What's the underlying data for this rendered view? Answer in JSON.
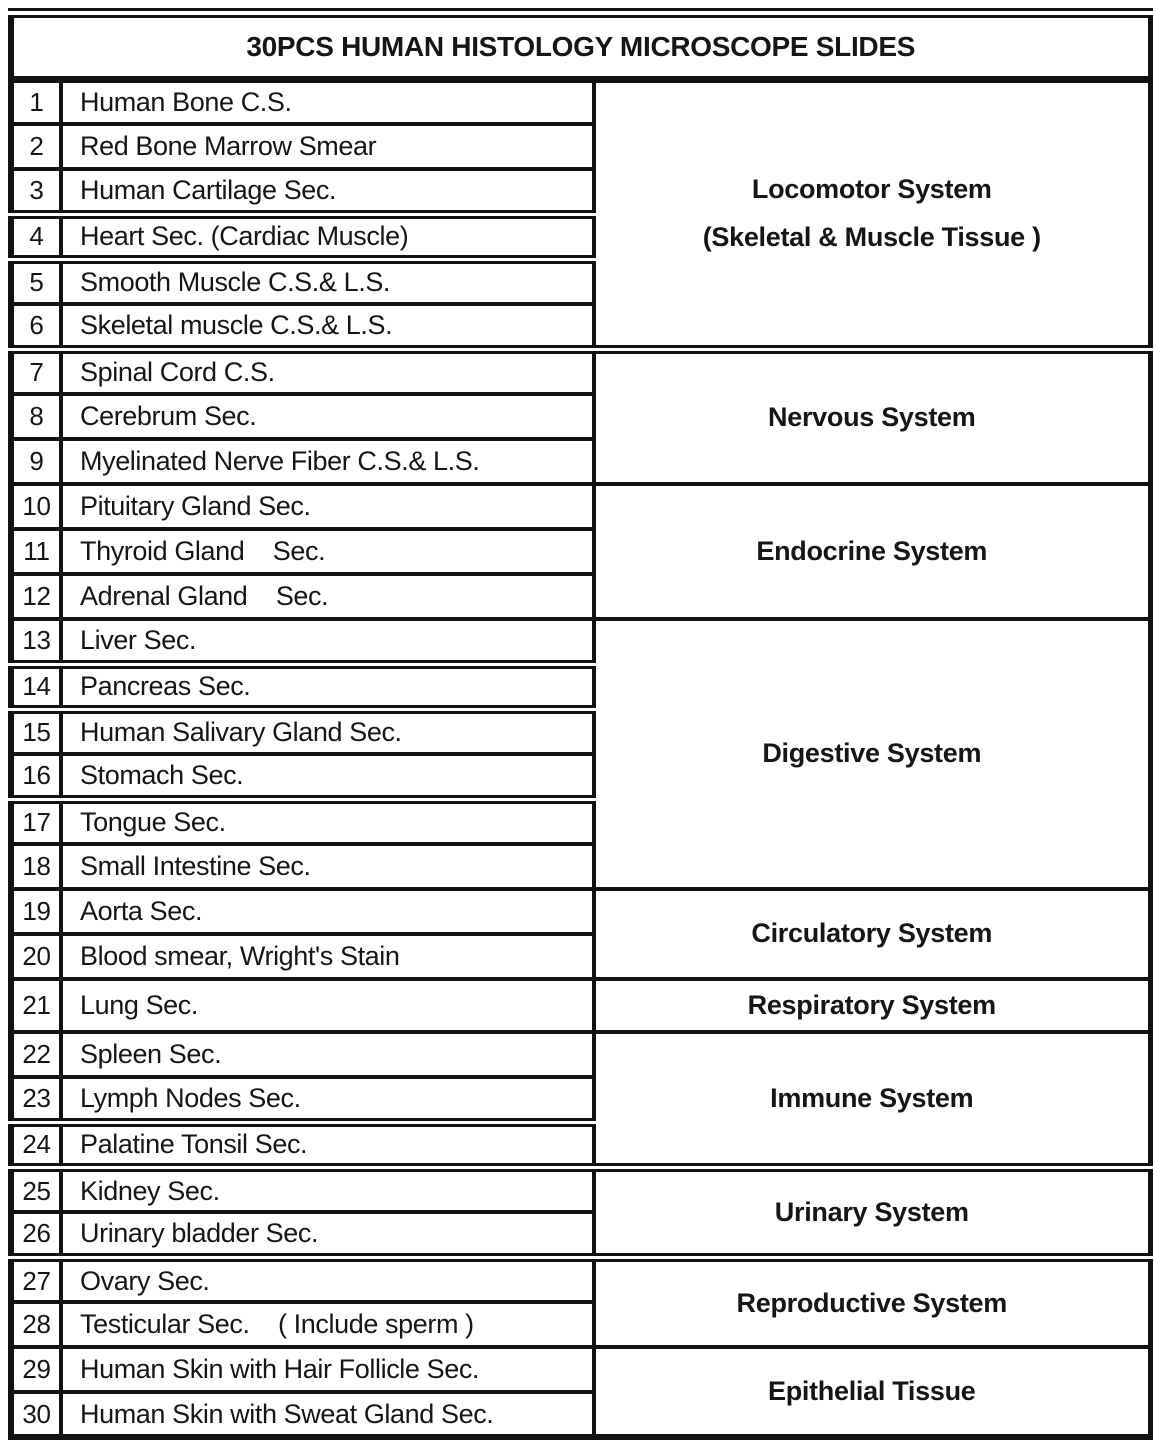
{
  "title": "30PCS HUMAN HISTOLOGY MICROSCOPE SLIDES",
  "colors": {
    "border": "#121212",
    "background": "#ffffff",
    "text": "#161616"
  },
  "table": {
    "groups": [
      {
        "system_lines": [
          "Locomotor System",
          "(Skeletal & Muscle Tissue )"
        ],
        "items": [
          {
            "no": "1",
            "name": "Human Bone C.S."
          },
          {
            "no": "2",
            "name": "Red Bone Marrow Smear"
          },
          {
            "no": "3",
            "name": "Human Cartilage Sec."
          },
          {
            "no": "4",
            "name": "Heart Sec. (Cardiac Muscle)"
          },
          {
            "no": "5",
            "name": "Smooth Muscle C.S.& L.S."
          },
          {
            "no": "6",
            "name": "Skeletal muscle C.S.& L.S."
          }
        ]
      },
      {
        "system_lines": [
          "Nervous System"
        ],
        "items": [
          {
            "no": "7",
            "name": "Spinal Cord C.S."
          },
          {
            "no": "8",
            "name": "Cerebrum Sec."
          },
          {
            "no": "9",
            "name": "Myelinated Nerve Fiber C.S.& L.S."
          }
        ]
      },
      {
        "system_lines": [
          "Endocrine System"
        ],
        "items": [
          {
            "no": "10",
            "name": "Pituitary Gland Sec."
          },
          {
            "no": "11",
            "name": "Thyroid Gland    Sec."
          },
          {
            "no": "12",
            "name": "Adrenal Gland    Sec."
          }
        ]
      },
      {
        "system_lines": [
          "Digestive System"
        ],
        "items": [
          {
            "no": "13",
            "name": "Liver Sec."
          },
          {
            "no": "14",
            "name": "Pancreas Sec."
          },
          {
            "no": "15",
            "name": "Human Salivary Gland Sec."
          },
          {
            "no": "16",
            "name": "Stomach Sec."
          },
          {
            "no": "17",
            "name": "Tongue Sec."
          },
          {
            "no": "18",
            "name": "Small Intestine Sec."
          }
        ]
      },
      {
        "system_lines": [
          "Circulatory System"
        ],
        "items": [
          {
            "no": "19",
            "name": "Aorta Sec."
          },
          {
            "no": "20",
            "name": "Blood smear, Wright's Stain"
          }
        ]
      },
      {
        "system_lines": [
          "Respiratory System"
        ],
        "items": [
          {
            "no": "21",
            "name": "Lung Sec."
          }
        ]
      },
      {
        "system_lines": [
          "Immune System"
        ],
        "items": [
          {
            "no": "22",
            "name": "Spleen Sec."
          },
          {
            "no": "23",
            "name": "Lymph Nodes Sec."
          },
          {
            "no": "24",
            "name": "Palatine Tonsil Sec."
          }
        ]
      },
      {
        "system_lines": [
          "Urinary System"
        ],
        "items": [
          {
            "no": "25",
            "name": "Kidney Sec."
          },
          {
            "no": "26",
            "name": "Urinary bladder Sec."
          }
        ]
      },
      {
        "system_lines": [
          "Reproductive System"
        ],
        "items": [
          {
            "no": "27",
            "name": "Ovary Sec."
          },
          {
            "no": "28",
            "name": "Testicular Sec.    ( Include sperm )"
          }
        ]
      },
      {
        "system_lines": [
          "Epithelial Tissue"
        ],
        "items": [
          {
            "no": "29",
            "name": "Human Skin with Hair Follicle Sec."
          },
          {
            "no": "30",
            "name": "Human Skin with Sweat Gland Sec."
          }
        ]
      }
    ]
  }
}
